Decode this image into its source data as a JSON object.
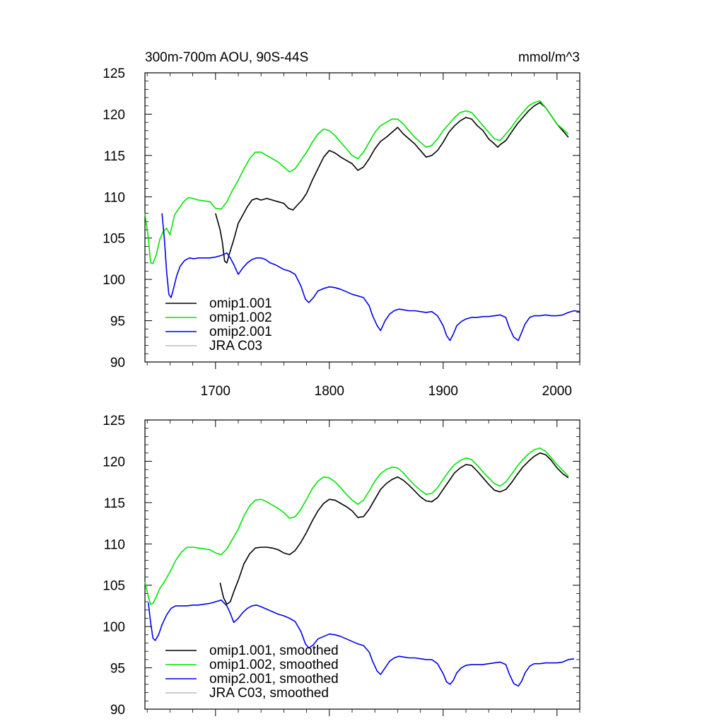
{
  "chart_data": [
    {
      "type": "line",
      "title": "300m-700m AOU, 90S-44S",
      "units": "mmol/m^3",
      "xlim": [
        1638,
        2020
      ],
      "ylim": [
        90,
        125
      ],
      "x_ticks": [
        1700,
        1800,
        1900,
        2000
      ],
      "x_tick_labels": [
        "1700",
        "1800",
        "1900",
        "2000"
      ],
      "y_ticks": [
        90,
        95,
        100,
        105,
        110,
        115,
        120,
        125
      ],
      "y_tick_labels": [
        "90",
        "95",
        "100",
        "105",
        "110",
        "115",
        "120",
        "125"
      ],
      "grid": false,
      "legend_position": "bottom-left",
      "series": [
        {
          "name": "omip1.001",
          "color": "#000000",
          "x": [
            1700,
            1704,
            1706,
            1708,
            1710,
            1712,
            1716,
            1720,
            1724,
            1728,
            1732,
            1736,
            1740,
            1745,
            1750,
            1755,
            1760,
            1764,
            1768,
            1772,
            1776,
            1780,
            1785,
            1790,
            1795,
            1800,
            1805,
            1810,
            1815,
            1820,
            1825,
            1830,
            1835,
            1840,
            1845,
            1850,
            1855,
            1860,
            1865,
            1870,
            1875,
            1880,
            1885,
            1890,
            1895,
            1900,
            1905,
            1910,
            1915,
            1920,
            1925,
            1930,
            1935,
            1940,
            1945,
            1948,
            1950,
            1955,
            1960,
            1965,
            1970,
            1975,
            1980,
            1985,
            1990,
            1995,
            2000,
            2005,
            2010
          ],
          "y": [
            108.0,
            106.0,
            104.5,
            102.2,
            102.0,
            103.0,
            104.8,
            106.8,
            107.8,
            108.8,
            109.6,
            109.8,
            109.6,
            109.8,
            109.6,
            109.4,
            109.2,
            108.6,
            108.4,
            109.0,
            109.6,
            110.4,
            112.0,
            113.4,
            114.8,
            115.6,
            115.3,
            114.8,
            114.4,
            114.0,
            113.2,
            113.6,
            114.6,
            115.8,
            116.7,
            117.2,
            117.8,
            118.4,
            117.6,
            117.0,
            116.4,
            115.6,
            114.8,
            115.0,
            115.6,
            116.6,
            117.8,
            118.6,
            119.2,
            119.6,
            119.4,
            118.6,
            118.0,
            117.0,
            116.4,
            116.0,
            116.3,
            116.8,
            117.8,
            118.8,
            119.6,
            120.4,
            121.0,
            121.4,
            120.8,
            119.8,
            118.8,
            118.0,
            117.2
          ]
        },
        {
          "name": "omip1.002",
          "color": "#00e600",
          "x": [
            1638,
            1641,
            1643,
            1645,
            1648,
            1651,
            1654,
            1657,
            1660,
            1664,
            1668,
            1672,
            1676,
            1680,
            1685,
            1690,
            1695,
            1700,
            1705,
            1710,
            1715,
            1720,
            1725,
            1730,
            1735,
            1740,
            1745,
            1750,
            1755,
            1760,
            1765,
            1770,
            1775,
            1780,
            1785,
            1790,
            1795,
            1800,
            1805,
            1810,
            1815,
            1820,
            1825,
            1830,
            1835,
            1840,
            1845,
            1850,
            1855,
            1860,
            1865,
            1870,
            1875,
            1880,
            1885,
            1890,
            1895,
            1900,
            1905,
            1910,
            1915,
            1920,
            1925,
            1930,
            1935,
            1940,
            1945,
            1950,
            1955,
            1960,
            1965,
            1970,
            1975,
            1980,
            1985,
            1990,
            1995,
            2000,
            2005,
            2010
          ],
          "y": [
            108.0,
            105.0,
            102.0,
            101.9,
            103.0,
            104.8,
            105.8,
            106.2,
            105.4,
            107.8,
            108.6,
            109.4,
            109.9,
            109.8,
            109.6,
            109.5,
            109.4,
            108.6,
            108.5,
            109.4,
            110.8,
            112.0,
            113.4,
            114.6,
            115.4,
            115.4,
            115.0,
            114.6,
            114.2,
            113.6,
            113.0,
            113.4,
            114.4,
            115.4,
            116.6,
            117.6,
            118.2,
            118.0,
            117.4,
            116.6,
            115.8,
            115.0,
            114.6,
            115.4,
            116.6,
            117.8,
            118.6,
            119.0,
            119.4,
            119.4,
            118.8,
            118.0,
            117.2,
            116.6,
            116.0,
            116.2,
            117.0,
            118.0,
            118.8,
            119.6,
            120.2,
            120.4,
            120.2,
            119.4,
            118.6,
            117.8,
            117.0,
            116.8,
            117.6,
            118.4,
            119.4,
            120.2,
            121.0,
            121.4,
            121.6,
            120.8,
            119.8,
            118.8,
            118.2,
            117.6
          ]
        },
        {
          "name": "omip2.001",
          "color": "#0000ee",
          "x": [
            1653,
            1655,
            1657,
            1659,
            1661,
            1663,
            1666,
            1669,
            1673,
            1677,
            1681,
            1685,
            1690,
            1695,
            1700,
            1705,
            1710,
            1713,
            1716,
            1720,
            1724,
            1728,
            1732,
            1736,
            1740,
            1744,
            1748,
            1752,
            1756,
            1760,
            1765,
            1770,
            1775,
            1779,
            1782,
            1786,
            1790,
            1795,
            1800,
            1805,
            1810,
            1815,
            1820,
            1825,
            1830,
            1835,
            1838,
            1842,
            1845,
            1849,
            1853,
            1857,
            1861,
            1866,
            1870,
            1875,
            1880,
            1885,
            1890,
            1895,
            1900,
            1903,
            1906,
            1909,
            1912,
            1916,
            1920,
            1925,
            1930,
            1935,
            1940,
            1945,
            1950,
            1955,
            1958,
            1962,
            1966,
            1969,
            1972,
            1976,
            1980,
            1985,
            1990,
            1995,
            2000,
            2005,
            2010,
            2015,
            2020
          ],
          "y": [
            108.0,
            105.0,
            101.0,
            98.2,
            97.8,
            98.8,
            100.5,
            101.6,
            102.3,
            102.6,
            102.5,
            102.6,
            102.6,
            102.6,
            102.7,
            102.9,
            103.2,
            102.6,
            101.8,
            100.6,
            101.4,
            102.0,
            102.4,
            102.6,
            102.6,
            102.4,
            102.0,
            101.8,
            101.5,
            101.2,
            101.0,
            100.6,
            99.2,
            97.6,
            97.2,
            97.8,
            98.6,
            98.9,
            99.1,
            99.0,
            98.8,
            98.5,
            98.2,
            98.0,
            97.8,
            96.8,
            95.6,
            94.4,
            93.8,
            95.0,
            95.8,
            96.2,
            96.4,
            96.3,
            96.2,
            96.2,
            96.1,
            96.0,
            96.1,
            95.6,
            94.4,
            93.2,
            92.6,
            93.4,
            94.4,
            94.9,
            95.2,
            95.4,
            95.4,
            95.5,
            95.5,
            95.6,
            95.7,
            95.4,
            94.2,
            93.0,
            92.6,
            93.6,
            94.6,
            95.4,
            95.6,
            95.6,
            95.7,
            95.6,
            95.6,
            95.7,
            96.0,
            96.2,
            96.1
          ]
        },
        {
          "name": "JRA C03",
          "color": "#bbbbbb",
          "x": [],
          "y": []
        }
      ]
    },
    {
      "type": "line",
      "title": "",
      "xlim": [
        1638,
        2020
      ],
      "ylim": [
        90,
        125
      ],
      "x_ticks": [
        1700,
        1800,
        1900,
        2000
      ],
      "y_ticks": [
        90,
        95,
        100,
        105,
        110,
        115,
        120,
        125
      ],
      "y_tick_labels": [
        "90",
        "95",
        "100",
        "105",
        "110",
        "115",
        "120",
        "125"
      ],
      "grid": false,
      "legend_position": "bottom-left",
      "series": [
        {
          "name": "omip1.001, smoothed",
          "color": "#000000",
          "x": [
            1704,
            1707,
            1710,
            1713,
            1716,
            1720,
            1725,
            1730,
            1735,
            1740,
            1745,
            1750,
            1755,
            1760,
            1765,
            1770,
            1775,
            1780,
            1785,
            1790,
            1795,
            1800,
            1805,
            1810,
            1815,
            1820,
            1825,
            1830,
            1835,
            1840,
            1845,
            1850,
            1855,
            1860,
            1865,
            1870,
            1875,
            1880,
            1885,
            1890,
            1895,
            1900,
            1905,
            1910,
            1915,
            1920,
            1925,
            1930,
            1935,
            1940,
            1945,
            1950,
            1955,
            1960,
            1965,
            1970,
            1975,
            1980,
            1985,
            1990,
            1995,
            2000,
            2005,
            2010
          ],
          "y": [
            105.3,
            103.5,
            102.7,
            103.0,
            104.2,
            105.6,
            107.6,
            108.8,
            109.5,
            109.6,
            109.6,
            109.5,
            109.3,
            108.9,
            108.7,
            109.2,
            110.2,
            111.4,
            112.8,
            114.0,
            114.9,
            115.4,
            115.3,
            114.9,
            114.5,
            114.0,
            113.2,
            113.3,
            114.2,
            115.4,
            116.6,
            117.3,
            117.8,
            118.1,
            117.7,
            117.1,
            116.4,
            115.7,
            115.2,
            115.1,
            115.6,
            116.6,
            117.6,
            118.6,
            119.2,
            119.6,
            119.5,
            118.8,
            118.0,
            117.2,
            116.5,
            116.3,
            116.6,
            117.4,
            118.4,
            119.3,
            120.0,
            120.6,
            121.0,
            120.8,
            120.1,
            119.2,
            118.5,
            118.0
          ]
        },
        {
          "name": "omip1.002, smoothed",
          "color": "#00e600",
          "x": [
            1638,
            1641,
            1643,
            1645,
            1648,
            1651,
            1655,
            1660,
            1665,
            1670,
            1675,
            1680,
            1685,
            1690,
            1695,
            1700,
            1705,
            1710,
            1715,
            1720,
            1725,
            1730,
            1735,
            1740,
            1745,
            1750,
            1755,
            1760,
            1765,
            1770,
            1775,
            1780,
            1785,
            1790,
            1795,
            1800,
            1805,
            1810,
            1815,
            1820,
            1825,
            1830,
            1835,
            1840,
            1845,
            1850,
            1855,
            1860,
            1865,
            1870,
            1875,
            1880,
            1885,
            1890,
            1895,
            1900,
            1905,
            1910,
            1915,
            1920,
            1925,
            1930,
            1935,
            1940,
            1945,
            1950,
            1955,
            1960,
            1965,
            1970,
            1975,
            1980,
            1985,
            1990,
            1995,
            2000,
            2005,
            2010
          ],
          "y": [
            105.4,
            103.6,
            102.7,
            102.8,
            103.6,
            104.6,
            105.4,
            106.6,
            108.0,
            109.0,
            109.6,
            109.6,
            109.5,
            109.4,
            109.3,
            108.9,
            108.7,
            109.4,
            110.6,
            111.8,
            113.4,
            114.6,
            115.3,
            115.4,
            115.1,
            114.7,
            114.3,
            113.8,
            113.1,
            113.3,
            114.2,
            115.4,
            116.7,
            117.6,
            118.1,
            118.0,
            117.5,
            116.8,
            116.0,
            115.3,
            114.8,
            115.3,
            116.4,
            117.6,
            118.5,
            119.0,
            119.3,
            119.2,
            118.6,
            117.8,
            117.1,
            116.5,
            116.0,
            116.1,
            116.8,
            117.8,
            118.8,
            119.6,
            120.1,
            120.4,
            120.2,
            119.5,
            118.7,
            118.0,
            117.3,
            117.0,
            117.5,
            118.4,
            119.4,
            120.2,
            120.9,
            121.4,
            121.6,
            121.2,
            120.4,
            119.6,
            118.9,
            118.2
          ]
        },
        {
          "name": "omip2.001, smoothed",
          "color": "#0000ee",
          "x": [
            1641,
            1643,
            1645,
            1647,
            1650,
            1653,
            1657,
            1661,
            1665,
            1670,
            1675,
            1680,
            1685,
            1690,
            1695,
            1700,
            1705,
            1710,
            1713,
            1716,
            1720,
            1724,
            1728,
            1732,
            1736,
            1740,
            1745,
            1750,
            1755,
            1760,
            1765,
            1770,
            1775,
            1779,
            1782,
            1786,
            1790,
            1795,
            1800,
            1805,
            1810,
            1815,
            1820,
            1825,
            1830,
            1835,
            1838,
            1842,
            1845,
            1849,
            1853,
            1857,
            1861,
            1866,
            1870,
            1875,
            1880,
            1885,
            1890,
            1895,
            1900,
            1903,
            1906,
            1909,
            1912,
            1916,
            1920,
            1925,
            1930,
            1935,
            1940,
            1945,
            1950,
            1955,
            1958,
            1962,
            1966,
            1969,
            1972,
            1976,
            1980,
            1985,
            1990,
            1995,
            2000,
            2005,
            2010,
            2015
          ],
          "y": [
            102.9,
            100.5,
            98.6,
            98.3,
            99.0,
            100.2,
            101.4,
            102.2,
            102.5,
            102.5,
            102.5,
            102.6,
            102.6,
            102.7,
            102.8,
            103.0,
            103.2,
            102.5,
            101.6,
            100.5,
            101.0,
            101.7,
            102.2,
            102.5,
            102.6,
            102.4,
            102.1,
            101.8,
            101.5,
            101.3,
            101.0,
            100.6,
            99.4,
            97.9,
            97.4,
            97.8,
            98.5,
            98.8,
            99.1,
            99.0,
            98.8,
            98.5,
            98.2,
            97.9,
            97.7,
            96.9,
            95.8,
            94.6,
            94.2,
            95.0,
            95.8,
            96.2,
            96.4,
            96.3,
            96.2,
            96.2,
            96.1,
            96.0,
            96.0,
            95.5,
            94.3,
            93.3,
            93.0,
            93.5,
            94.4,
            95.0,
            95.3,
            95.4,
            95.4,
            95.4,
            95.5,
            95.6,
            95.7,
            95.4,
            94.3,
            93.1,
            92.8,
            93.4,
            94.4,
            95.2,
            95.5,
            95.5,
            95.6,
            95.6,
            95.6,
            95.7,
            96.0,
            96.1
          ]
        },
        {
          "name": "JRA C03, smoothed",
          "color": "#bbbbbb",
          "x": [],
          "y": []
        }
      ]
    }
  ]
}
